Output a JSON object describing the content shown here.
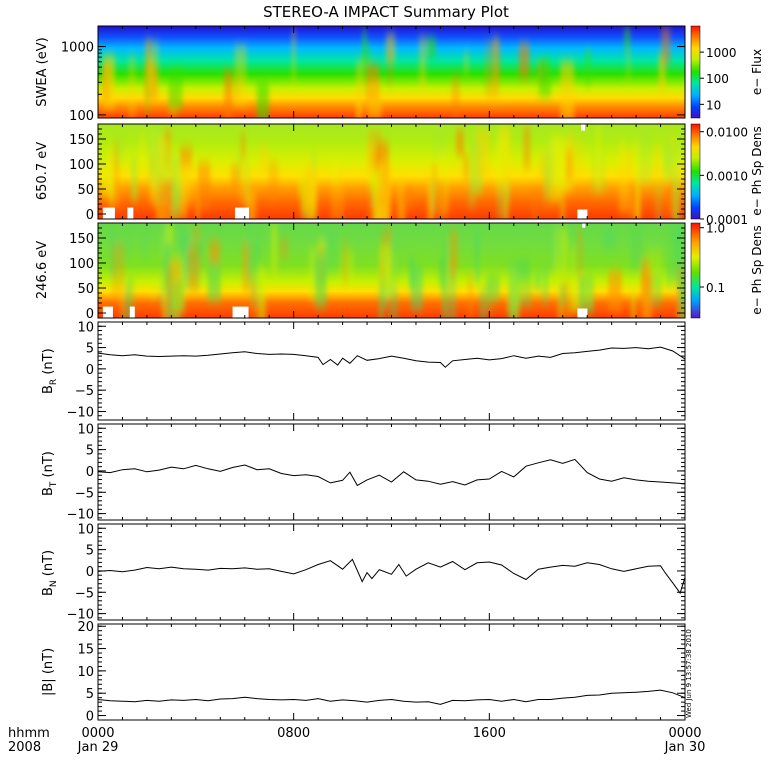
{
  "title": "STEREO-A IMPACT Summary Plot",
  "timestamp": "Wed Jun  9 13:57:38 2010",
  "time_axis": {
    "header_left": "hhmm",
    "year": "2008",
    "ticks": [
      {
        "hours": 0,
        "label": "0000",
        "sublabel": "Jan 29"
      },
      {
        "hours": 8,
        "label": "0800",
        "sublabel": ""
      },
      {
        "hours": 16,
        "label": "1600",
        "sublabel": ""
      },
      {
        "hours": 24,
        "label": "0000",
        "sublabel": "Jan 30"
      }
    ]
  },
  "chart_data": [
    {
      "type": "heatmap",
      "ylabel": "SWEA (eV)",
      "yscale": "log",
      "ylim": [
        90,
        2000
      ],
      "yticks": [
        {
          "v": 100,
          "label": "100"
        },
        {
          "v": 1000,
          "label": "1000"
        }
      ],
      "colorbar": {
        "label": "e− Flux",
        "scale": "log",
        "range": [
          3,
          10000
        ],
        "ticks": [
          {
            "v": 10,
            "label": "10"
          },
          {
            "v": 100,
            "label": "100"
          },
          {
            "v": 1000,
            "label": "1000"
          }
        ]
      }
    },
    {
      "type": "heatmap",
      "ylabel": "650.7 eV",
      "ylim": [
        -10,
        180
      ],
      "yticks": [
        {
          "v": 0,
          "label": "0"
        },
        {
          "v": 50,
          "label": "50"
        },
        {
          "v": 100,
          "label": "100"
        },
        {
          "v": 150,
          "label": "150"
        }
      ],
      "colorbar": {
        "label": "e− Ph Sp Dens",
        "scale": "log",
        "range": [
          0.0001,
          0.015
        ],
        "ticks": [
          {
            "v": 0.0001,
            "label": "0.0001"
          },
          {
            "v": 0.001,
            "label": "0.0010"
          },
          {
            "v": 0.01,
            "label": "0.0100"
          }
        ]
      }
    },
    {
      "type": "heatmap",
      "ylabel": "246.6 eV",
      "ylim": [
        -10,
        180
      ],
      "yticks": [
        {
          "v": 0,
          "label": "0"
        },
        {
          "v": 50,
          "label": "50"
        },
        {
          "v": 100,
          "label": "100"
        },
        {
          "v": 150,
          "label": "150"
        }
      ],
      "colorbar": {
        "label": "e− Ph Sp Dens",
        "scale": "log",
        "range": [
          0.03,
          1.2
        ],
        "ticks": [
          {
            "v": 0.1,
            "label": "0.1"
          },
          {
            "v": 1.0,
            "label": "1.0"
          }
        ]
      }
    },
    {
      "type": "line",
      "ylabel": "B",
      "ylabel_sub": "R",
      "ylabel_unit": " (nT)",
      "ylim": [
        -12,
        11
      ],
      "yticks": [
        {
          "v": -10,
          "label": "−10"
        },
        {
          "v": -5,
          "label": "−5"
        },
        {
          "v": 0,
          "label": "0"
        },
        {
          "v": 5,
          "label": "5"
        },
        {
          "v": 10,
          "label": "10"
        }
      ],
      "x": [
        0,
        0.5,
        1,
        1.5,
        2,
        2.5,
        3,
        3.5,
        4,
        4.5,
        5,
        5.5,
        6,
        6.5,
        7,
        7.5,
        8,
        8.5,
        9,
        9.2,
        9.5,
        9.8,
        10,
        10.3,
        10.6,
        11,
        11.5,
        12,
        12.5,
        13,
        13.5,
        14,
        14.2,
        14.5,
        15,
        15.5,
        16,
        16.5,
        17,
        17.5,
        18,
        18.5,
        19,
        19.5,
        20,
        20.5,
        21,
        21.5,
        22,
        22.5,
        23,
        23.5,
        24
      ],
      "y": [
        3.7,
        3.3,
        3.1,
        3.3,
        3.0,
        2.9,
        3.0,
        3.1,
        3.0,
        3.2,
        3.5,
        3.8,
        4.0,
        3.6,
        3.4,
        3.5,
        3.4,
        3.1,
        2.7,
        1.0,
        2.2,
        0.9,
        2.5,
        1.3,
        3.1,
        2.0,
        2.4,
        3.0,
        2.5,
        1.9,
        1.6,
        1.5,
        0.4,
        1.9,
        2.2,
        2.5,
        2.1,
        2.4,
        3.1,
        2.5,
        3.0,
        2.7,
        3.6,
        3.8,
        4.1,
        4.4,
        4.9,
        4.8,
        5.0,
        4.7,
        5.1,
        4.2,
        2.3
      ]
    },
    {
      "type": "line",
      "ylabel": "B",
      "ylabel_sub": "T",
      "ylabel_unit": " (nT)",
      "ylim": [
        -11.5,
        11
      ],
      "yticks": [
        {
          "v": -10,
          "label": "−10"
        },
        {
          "v": -5,
          "label": "−5"
        },
        {
          "v": 0,
          "label": "0"
        },
        {
          "v": 5,
          "label": "5"
        },
        {
          "v": 10,
          "label": "10"
        }
      ],
      "x": [
        0,
        0.5,
        1,
        1.5,
        2,
        2.5,
        3,
        3.5,
        4,
        4.5,
        5,
        5.5,
        6,
        6.5,
        7,
        7.5,
        8,
        8.5,
        9,
        9.5,
        10,
        10.3,
        10.6,
        11,
        11.5,
        12,
        12.5,
        13,
        13.5,
        14,
        14.5,
        15,
        15.5,
        16,
        16.5,
        17,
        17.5,
        18,
        18.5,
        19,
        19.5,
        20,
        20.5,
        21,
        21.5,
        22,
        22.5,
        23,
        23.5,
        24
      ],
      "y": [
        -0.2,
        -0.4,
        0.3,
        0.5,
        -0.2,
        0.2,
        0.9,
        0.5,
        1.3,
        0.5,
        -0.1,
        0.8,
        1.4,
        0.3,
        0.5,
        -0.6,
        -1.1,
        -0.9,
        -1.3,
        -2.8,
        -2.2,
        -0.3,
        -3.4,
        -2.1,
        -1.0,
        -2.6,
        -0.2,
        -2.1,
        -2.4,
        -3.1,
        -2.5,
        -3.3,
        -2.1,
        -1.9,
        -0.1,
        -1.4,
        1.1,
        1.9,
        2.6,
        1.8,
        2.7,
        -0.4,
        -1.9,
        -2.4,
        -1.6,
        -2.1,
        -2.4,
        -2.6,
        -2.8,
        -3.0
      ]
    },
    {
      "type": "line",
      "ylabel": "B",
      "ylabel_sub": "N",
      "ylabel_unit": " (nT)",
      "ylim": [
        -11.5,
        11
      ],
      "yticks": [
        {
          "v": -10,
          "label": "−10"
        },
        {
          "v": -5,
          "label": "−5"
        },
        {
          "v": 0,
          "label": "0"
        },
        {
          "v": 5,
          "label": "5"
        },
        {
          "v": 10,
          "label": "10"
        }
      ],
      "x": [
        0,
        0.5,
        1,
        1.5,
        2,
        2.5,
        3,
        3.5,
        4,
        4.5,
        5,
        5.5,
        6,
        6.5,
        7,
        7.5,
        8,
        8.5,
        9,
        9.5,
        10,
        10.4,
        10.8,
        11,
        11.2,
        11.5,
        12,
        12.3,
        12.6,
        13,
        13.5,
        14,
        14.5,
        15,
        15.5,
        16,
        16.5,
        17,
        17.5,
        18,
        18.5,
        19,
        19.5,
        20,
        20.5,
        21,
        21.5,
        22,
        22.5,
        23,
        23.2,
        23.5,
        23.8,
        24
      ],
      "y": [
        -0.1,
        0.1,
        -0.2,
        0.2,
        0.8,
        0.5,
        0.9,
        0.5,
        0.4,
        0.2,
        0.6,
        0.5,
        0.7,
        0.4,
        0.5,
        -0.1,
        -0.7,
        0.3,
        1.5,
        2.4,
        0.4,
        2.7,
        -2.5,
        -0.4,
        -1.8,
        0.3,
        -0.8,
        1.5,
        -1.2,
        0.4,
        1.9,
        0.9,
        2.2,
        0.3,
        1.9,
        2.1,
        1.4,
        -0.6,
        -2.0,
        0.4,
        0.9,
        1.3,
        1.1,
        1.9,
        1.5,
        0.5,
        -0.1,
        0.5,
        1.1,
        1.2,
        -0.5,
        -2.8,
        -5.2,
        -1.5
      ]
    },
    {
      "type": "line",
      "ylabel": "|B|",
      "ylabel_sub": "",
      "ylabel_unit": " (nT)",
      "ylim": [
        -1,
        20.5
      ],
      "yticks": [
        {
          "v": 0,
          "label": "0"
        },
        {
          "v": 5,
          "label": "5"
        },
        {
          "v": 10,
          "label": "10"
        },
        {
          "v": 15,
          "label": "15"
        },
        {
          "v": 20,
          "label": "20"
        }
      ],
      "x": [
        0,
        0.5,
        1,
        1.5,
        2,
        2.5,
        3,
        3.5,
        4,
        4.5,
        5,
        5.5,
        6,
        6.5,
        7,
        7.5,
        8,
        8.5,
        9,
        9.5,
        10,
        10.5,
        11,
        11.5,
        12,
        12.5,
        13,
        13.5,
        14,
        14.5,
        15,
        15.5,
        16,
        16.5,
        17,
        17.5,
        18,
        18.5,
        19,
        19.5,
        20,
        20.5,
        21,
        21.5,
        22,
        22.5,
        23,
        23.5,
        24
      ],
      "y": [
        3.6,
        3.3,
        3.2,
        3.1,
        3.4,
        3.2,
        3.5,
        3.4,
        3.6,
        3.3,
        3.7,
        3.8,
        4.1,
        3.8,
        3.6,
        3.5,
        3.6,
        3.4,
        3.8,
        3.2,
        3.5,
        3.3,
        3.0,
        3.4,
        3.6,
        3.2,
        3.0,
        3.1,
        2.5,
        3.4,
        3.3,
        3.5,
        3.6,
        3.2,
        3.6,
        3.1,
        3.6,
        3.6,
        3.9,
        4.1,
        4.5,
        4.6,
        5.0,
        5.1,
        5.2,
        5.4,
        5.7,
        5.1,
        4.0
      ]
    }
  ]
}
